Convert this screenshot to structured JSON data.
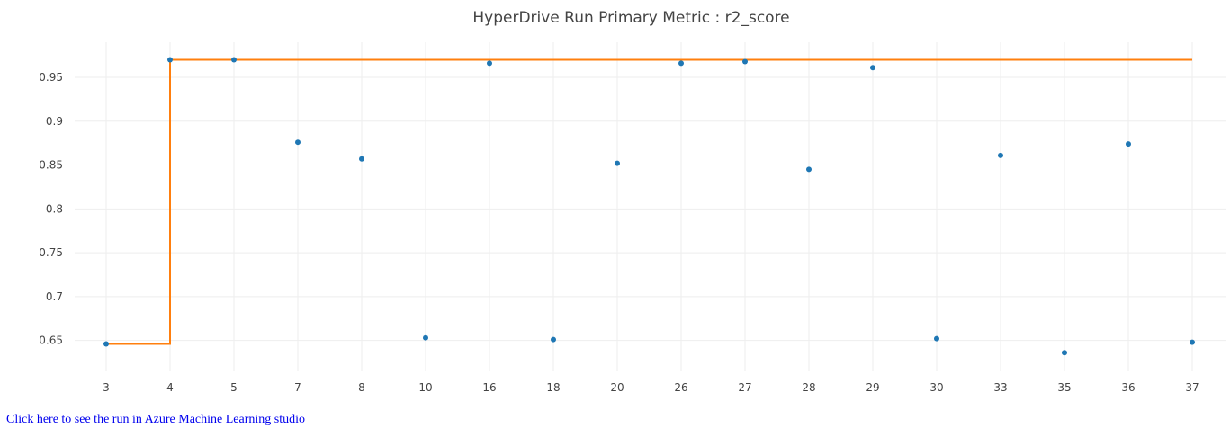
{
  "chart_data": {
    "type": "scatter",
    "title": "HyperDrive Run Primary Metric : r2_score",
    "xlabel": "",
    "ylabel": "",
    "categories": [
      "3",
      "4",
      "5",
      "7",
      "8",
      "10",
      "16",
      "18",
      "20",
      "26",
      "27",
      "28",
      "29",
      "30",
      "33",
      "35",
      "36",
      "37"
    ],
    "series": [
      {
        "values": [
          0.646,
          0.97,
          0.97,
          0.876,
          0.857,
          0.653,
          0.966,
          0.651,
          0.852,
          0.966,
          0.968,
          0.845,
          0.961,
          0.652,
          0.861,
          0.636,
          0.874,
          0.648
        ],
        "mode": "markers",
        "color": "#1f77b4"
      },
      {
        "values": [
          0.646,
          0.97,
          0.97,
          0.97,
          0.97,
          0.97,
          0.97,
          0.97,
          0.97,
          0.97,
          0.97,
          0.97,
          0.97,
          0.97,
          0.97,
          0.97,
          0.97,
          0.97
        ],
        "mode": "step",
        "color": "#ff7f0e"
      }
    ],
    "yticks": [
      "0.65",
      "0.7",
      "0.75",
      "0.8",
      "0.85",
      "0.9",
      "0.95"
    ],
    "ylim": [
      0.625,
      0.99
    ],
    "grid": true,
    "legend": "none"
  },
  "link": {
    "text": "Click here to see the run in Azure Machine Learning studio"
  }
}
